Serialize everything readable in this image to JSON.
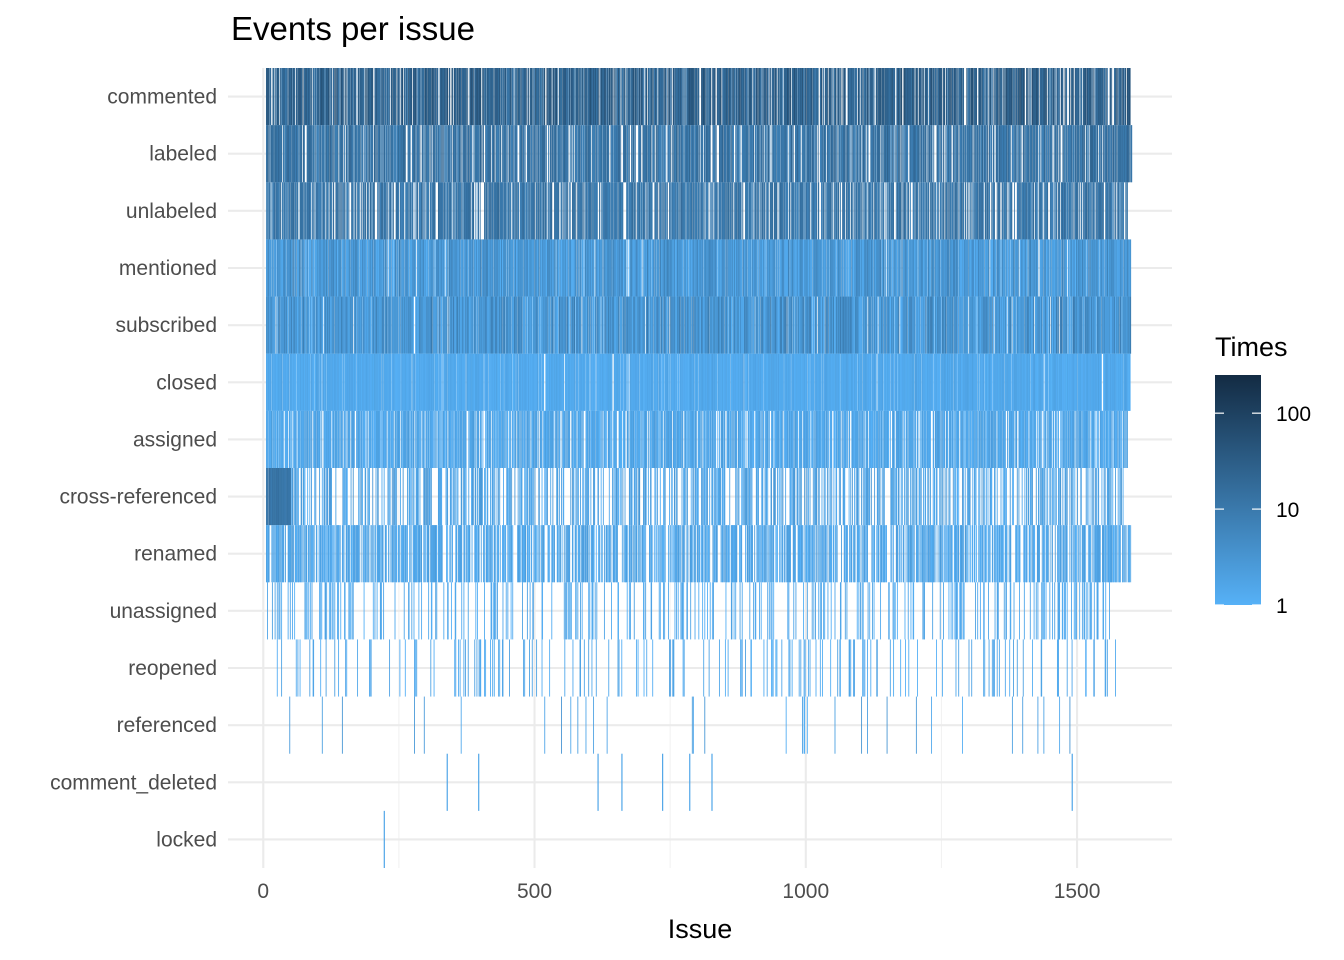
{
  "chart_data": {
    "type": "heatmap",
    "title": "Events per issue",
    "xlabel": "Issue",
    "ylabel": "",
    "xlim": [
      -65,
      1675
    ],
    "x_ticks": [
      0,
      500,
      1000,
      1500
    ],
    "x_tick_labels": [
      "0",
      "500",
      "1000",
      "1500"
    ],
    "x_minor_ticks": [
      250,
      750,
      1250
    ],
    "categories": [
      "commented",
      "labeled",
      "unlabeled",
      "mentioned",
      "subscribed",
      "closed",
      "assigned",
      "cross-referenced",
      "renamed",
      "unassigned",
      "reopened",
      "referenced",
      "comment_deleted",
      "locked"
    ],
    "grid": true,
    "legend": {
      "title": "Times",
      "position": "right",
      "scale": "log",
      "range": [
        1,
        250
      ],
      "ticks": [
        1,
        10,
        100
      ],
      "tick_labels": [
        "1",
        "10",
        "100"
      ],
      "color_low": "#56B1F7",
      "color_high": "#132B43"
    },
    "rows": [
      {
        "event": "commented",
        "x_range": [
          5,
          1597
        ],
        "density": 0.75,
        "level": [
          1.0,
          1.8
        ],
        "sample_issues_times": [
          [
            20,
            60
          ],
          [
            100,
            40
          ],
          [
            300,
            45
          ],
          [
            500,
            30
          ],
          [
            700,
            80
          ],
          [
            900,
            35
          ],
          [
            1100,
            60
          ],
          [
            1300,
            50
          ],
          [
            1400,
            90
          ],
          [
            1500,
            70
          ]
        ]
      },
      {
        "event": "labeled",
        "x_range": [
          5,
          1600
        ],
        "density": 0.7,
        "level": [
          0.8,
          1.4
        ],
        "sample_issues_times": [
          [
            50,
            15
          ],
          [
            200,
            20
          ],
          [
            400,
            12
          ],
          [
            600,
            18
          ],
          [
            800,
            25
          ],
          [
            1000,
            14
          ],
          [
            1200,
            10
          ],
          [
            1400,
            16
          ]
        ]
      },
      {
        "event": "unlabeled",
        "x_range": [
          5,
          1592
        ],
        "density": 0.65,
        "level": [
          0.8,
          1.3
        ],
        "sample_issues_times": [
          [
            50,
            10
          ],
          [
            300,
            12
          ],
          [
            600,
            15
          ],
          [
            900,
            9
          ],
          [
            1100,
            14
          ],
          [
            1300,
            11
          ],
          [
            1500,
            8
          ]
        ]
      },
      {
        "event": "mentioned",
        "x_range": [
          5,
          1598
        ],
        "density": 0.9,
        "level": [
          0.0,
          0.9
        ],
        "sample_issues_times": [
          [
            20,
            3
          ],
          [
            300,
            2
          ],
          [
            700,
            5
          ],
          [
            1000,
            2
          ],
          [
            1400,
            1
          ]
        ]
      },
      {
        "event": "subscribed",
        "x_range": [
          5,
          1598
        ],
        "density": 0.9,
        "level": [
          0.0,
          1.0
        ],
        "sample_issues_times": [
          [
            20,
            4
          ],
          [
            300,
            2
          ],
          [
            700,
            6
          ],
          [
            1000,
            3
          ],
          [
            1400,
            1
          ]
        ]
      },
      {
        "event": "closed",
        "x_range": [
          5,
          1597
        ],
        "density": 0.92,
        "level": [
          0.0,
          0.3
        ],
        "sample_issues_times": [
          [
            100,
            1
          ],
          [
            500,
            1
          ],
          [
            1000,
            1
          ],
          [
            1500,
            1
          ]
        ]
      },
      {
        "event": "assigned",
        "x_range": [
          5,
          1592
        ],
        "density": 0.7,
        "level": [
          0.0,
          0.4
        ],
        "sample_issues_times": [
          [
            100,
            1
          ],
          [
            500,
            2
          ],
          [
            1000,
            1
          ],
          [
            1500,
            1
          ]
        ]
      },
      {
        "event": "cross-referenced",
        "x_range": [
          5,
          1585
        ],
        "density": 0.35,
        "level": [
          0.0,
          0.5
        ],
        "dense_segment": {
          "x_range": [
            5,
            50
          ],
          "level": [
            0.9,
            1.2
          ]
        },
        "sample_issues_times": [
          [
            20,
            10
          ],
          [
            300,
            2
          ],
          [
            900,
            1
          ],
          [
            1400,
            1
          ]
        ]
      },
      {
        "event": "renamed",
        "x_range": [
          5,
          1598
        ],
        "density": 0.55,
        "level": [
          0.0,
          0.4
        ],
        "sample_issues_times": [
          [
            100,
            1
          ],
          [
            500,
            2
          ],
          [
            1000,
            1
          ],
          [
            1500,
            1
          ]
        ]
      },
      {
        "event": "unassigned",
        "x_range": [
          5,
          1560
        ],
        "density": 0.18,
        "level": [
          0.0,
          0.3
        ],
        "sample_issues_times": [
          [
            100,
            1
          ],
          [
            800,
            1
          ],
          [
            1400,
            1
          ]
        ]
      },
      {
        "event": "reopened",
        "x_range": [
          20,
          1585
        ],
        "density": 0.1,
        "level": [
          0.0,
          0.3
        ],
        "sample_issues_times": [
          [
            200,
            1
          ],
          [
            700,
            1
          ],
          [
            1300,
            1
          ]
        ]
      },
      {
        "event": "referenced",
        "x_range": [
          5,
          1495
        ],
        "density": 0.02,
        "level": [
          0.0,
          0.5
        ],
        "sample_issues_times": [
          [
            8,
            1
          ],
          [
            112,
            1
          ],
          [
            185,
            1
          ],
          [
            422,
            1
          ],
          [
            490,
            1
          ],
          [
            620,
            1
          ],
          [
            755,
            1
          ],
          [
            1080,
            1
          ],
          [
            1260,
            1
          ],
          [
            1392,
            1
          ],
          [
            1492,
            1
          ]
        ]
      },
      {
        "event": "comment_deleted",
        "x_issues": [
          338,
          396,
          616,
          660,
          735,
          785,
          826,
          1490
        ],
        "times": [
          1,
          1,
          1,
          1,
          1,
          1,
          1,
          1
        ]
      },
      {
        "event": "locked",
        "x_issues": [
          222
        ],
        "times": [
          1
        ]
      }
    ]
  }
}
